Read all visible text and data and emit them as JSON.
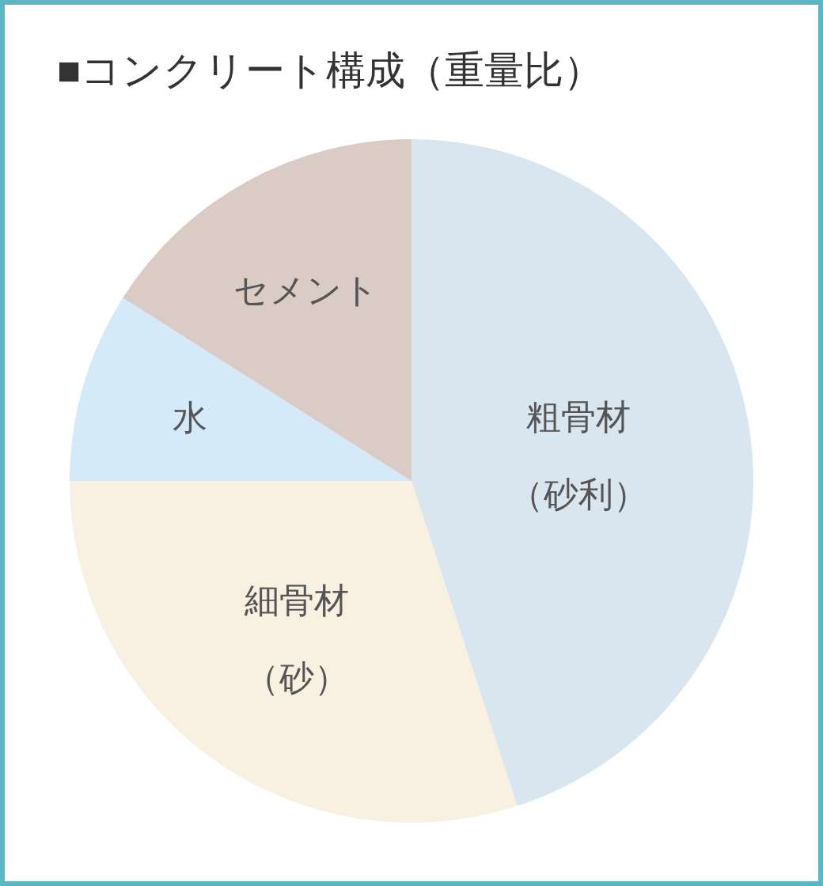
{
  "chart_data": {
    "type": "pie",
    "title": "■コンクリート構成（重量比）",
    "categories": [
      "粗骨材（砂利）",
      "細骨材（砂）",
      "水",
      "セメント"
    ],
    "values": [
      45,
      30,
      9,
      16
    ],
    "colors": [
      "#d9e5ef",
      "#f8f0e0",
      "#d5eaf8",
      "#dacbc5"
    ]
  }
}
